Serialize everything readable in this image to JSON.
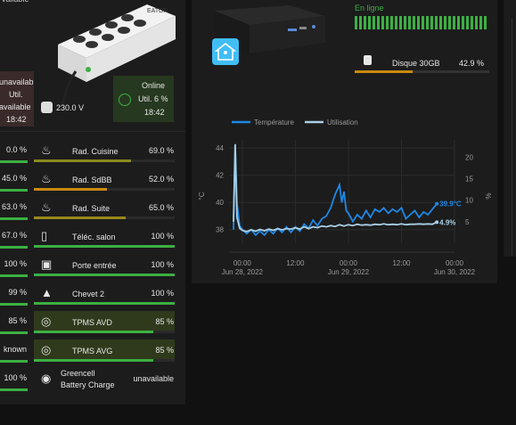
{
  "ups": {
    "left_status_lines": [
      "unavailab",
      "Util.",
      "available",
      "18:42"
    ],
    "top_cut_text": "vailable",
    "voltage": "230.0 V",
    "online_card": {
      "lines": [
        "Online",
        "Util. 6 %",
        "18:42"
      ]
    },
    "brand": "EATON"
  },
  "nuc": {
    "status": "En ligne",
    "disk_label": "Disque 30GB",
    "disk_value": "42.9 %",
    "disk_fill_fraction": 0.429
  },
  "rows": [
    {
      "left_val": "0.0 %",
      "label": "Rad. Cuisine",
      "value": "69.0 %",
      "icon": "radiator-icon",
      "fill": 0.69,
      "color": "#8a8a22",
      "highlight": false
    },
    {
      "left_val": "45.0 %",
      "label": "Rad. SdBB",
      "value": "52.0 %",
      "icon": "radiator-icon",
      "fill": 0.52,
      "color": "#c98a10",
      "highlight": false
    },
    {
      "left_val": "63.0 %",
      "label": "Rad. Suite",
      "value": "65.0 %",
      "icon": "radiator-icon",
      "fill": 0.65,
      "color": "#9a8a1a",
      "highlight": false
    },
    {
      "left_val": "67.0 %",
      "label": "Téléc. salon",
      "value": "100 %",
      "icon": "remote-icon",
      "fill": 1.0,
      "color": "#3cb043",
      "highlight": false
    },
    {
      "left_val": "100 %",
      "label": "Porte entrée",
      "value": "100 %",
      "icon": "door-sensor-icon",
      "fill": 1.0,
      "color": "#3cb043",
      "highlight": false
    },
    {
      "left_val": "99 %",
      "label": "Chevet 2",
      "value": "100 %",
      "icon": "lamp-icon",
      "fill": 1.0,
      "color": "#3cb043",
      "highlight": false
    },
    {
      "left_val": "85 %",
      "label": "TPMS AVD",
      "value": "85 %",
      "icon": "tire-icon",
      "fill": 0.85,
      "color": "#3cb043",
      "highlight": true
    },
    {
      "left_val": "known",
      "label": "TPMS AVG",
      "value": "85 %",
      "icon": "tire-icon",
      "fill": 0.85,
      "color": "#3cb043",
      "highlight": true
    },
    {
      "left_val": "100 %",
      "label": "Greencell\nBattery Charge",
      "value": "unavailable",
      "icon": "eye-icon",
      "fill": 0.0,
      "color": "#3cb043",
      "highlight": false
    }
  ],
  "colors": {
    "temperature": "#1e88e5",
    "usage": "#a9cfe6",
    "good": "#3cb043",
    "warn": "#c98a10"
  },
  "chart_data": {
    "type": "line",
    "legend": [
      "Température",
      "Utilisation"
    ],
    "legend_position": "top-left",
    "ylabel_left": "°C",
    "ylabel_right": "%",
    "y_left_ticks": [
      38,
      40,
      42,
      44
    ],
    "y_right_ticks": [
      5,
      10,
      15,
      20
    ],
    "ylim_left": [
      37,
      44.6
    ],
    "ylim_right": [
      0,
      24
    ],
    "x_ticks": [
      {
        "line1": "00:00",
        "line2": "Jun 28, 2022",
        "t": 0
      },
      {
        "line1": "12:00",
        "line2": "",
        "t": 12
      },
      {
        "line1": "00:00",
        "line2": "Jun 29, 2022",
        "t": 24
      },
      {
        "line1": "12:00",
        "line2": "",
        "t": 36
      },
      {
        "line1": "00:00",
        "line2": "Jun 30, 2022",
        "t": 48
      }
    ],
    "xlim": [
      -3,
      48
    ],
    "series": [
      {
        "name": "Température",
        "axis": "left",
        "last_label": "39.9°C",
        "points": [
          [
            -2,
            38
          ],
          [
            -1.6,
            44.2
          ],
          [
            -1.2,
            40
          ],
          [
            -0.6,
            38.3
          ],
          [
            0,
            38
          ],
          [
            1,
            37.7
          ],
          [
            2,
            38
          ],
          [
            3,
            37.6
          ],
          [
            4,
            37.9
          ],
          [
            5,
            37.6
          ],
          [
            6,
            38
          ],
          [
            7,
            37.7
          ],
          [
            8,
            38.1
          ],
          [
            9,
            37.8
          ],
          [
            10,
            38.2
          ],
          [
            11,
            37.8
          ],
          [
            12,
            38.2
          ],
          [
            13,
            37.9
          ],
          [
            14,
            38.4
          ],
          [
            15,
            38.1
          ],
          [
            16,
            38.7
          ],
          [
            17,
            38.3
          ],
          [
            18,
            38.8
          ],
          [
            19,
            39
          ],
          [
            20,
            39.6
          ],
          [
            21,
            40.6
          ],
          [
            22,
            41.3
          ],
          [
            22.5,
            40
          ],
          [
            23,
            40.8
          ],
          [
            23.5,
            39.4
          ],
          [
            24,
            39.2
          ],
          [
            25,
            38.6
          ],
          [
            26,
            39.1
          ],
          [
            27,
            38.8
          ],
          [
            28,
            39.4
          ],
          [
            29,
            38.9
          ],
          [
            30,
            39.5
          ],
          [
            31,
            39.3
          ],
          [
            32,
            39.6
          ],
          [
            33,
            39.2
          ],
          [
            34,
            39.5
          ],
          [
            35,
            39.3
          ],
          [
            36,
            39.6
          ],
          [
            37,
            38.8
          ],
          [
            38,
            39.1
          ],
          [
            39,
            39.4
          ],
          [
            40,
            38.9
          ],
          [
            41,
            39.3
          ],
          [
            42,
            39.1
          ],
          [
            43,
            39.5
          ],
          [
            44,
            39.9
          ]
        ]
      },
      {
        "name": "Utilisation",
        "axis": "right",
        "last_label": "4.9%",
        "points": [
          [
            -2,
            5
          ],
          [
            -1.6,
            23
          ],
          [
            -1.2,
            6
          ],
          [
            -0.6,
            3.5
          ],
          [
            0,
            3
          ],
          [
            1,
            2.7
          ],
          [
            2,
            3.1
          ],
          [
            3,
            2.8
          ],
          [
            4,
            3.2
          ],
          [
            5,
            2.9
          ],
          [
            6,
            3.3
          ],
          [
            7,
            3
          ],
          [
            8,
            3.4
          ],
          [
            9,
            3.1
          ],
          [
            10,
            3.4
          ],
          [
            11,
            3.3
          ],
          [
            12,
            3.6
          ],
          [
            13,
            3.3
          ],
          [
            14,
            3.8
          ],
          [
            15,
            3.4
          ],
          [
            16,
            3.8
          ],
          [
            17,
            3.6
          ],
          [
            18,
            4
          ],
          [
            19,
            3.8
          ],
          [
            20,
            4.1
          ],
          [
            21,
            3.9
          ],
          [
            22,
            4.3
          ],
          [
            23,
            4
          ],
          [
            24,
            4.3
          ],
          [
            25,
            4.1
          ],
          [
            26,
            4.4
          ],
          [
            27,
            4.2
          ],
          [
            28,
            4.3
          ],
          [
            29,
            4.2
          ],
          [
            30,
            4.4
          ],
          [
            31,
            4.3
          ],
          [
            32,
            4.5
          ],
          [
            33,
            4.3
          ],
          [
            34,
            4.4
          ],
          [
            35,
            4.3
          ],
          [
            36,
            4.5
          ],
          [
            37,
            4.3
          ],
          [
            38,
            4.4
          ],
          [
            39,
            4.4
          ],
          [
            40,
            4.5
          ],
          [
            41,
            4.4
          ],
          [
            42,
            4.5
          ],
          [
            43,
            4.4
          ],
          [
            44,
            4.9
          ]
        ]
      }
    ]
  }
}
